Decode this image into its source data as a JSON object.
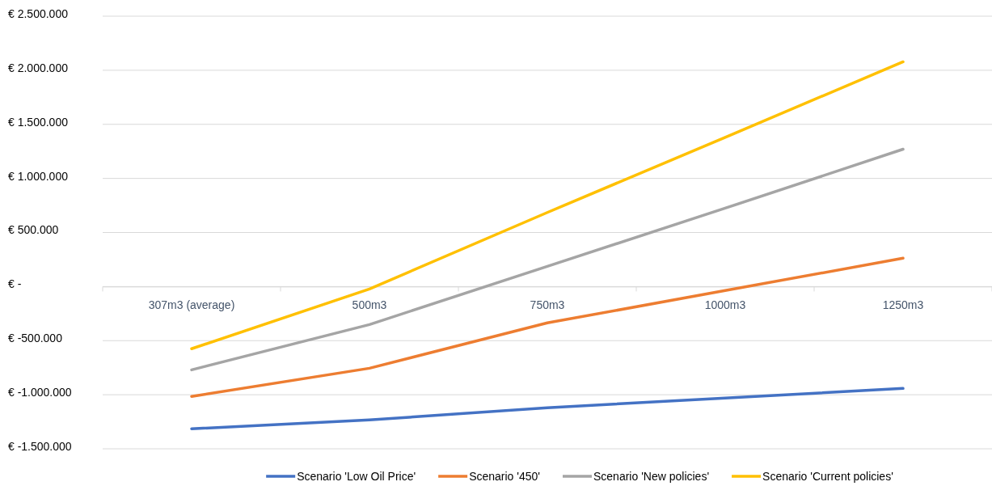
{
  "chart_data": {
    "type": "line",
    "categories": [
      "307m3 (average)",
      "500m3",
      "750m3",
      "1000m3",
      "1250m3"
    ],
    "series": [
      {
        "name": "Scenario 'Low Oil Price'",
        "color": "#4472c4",
        "values": [
          -1315000,
          -1233000,
          -1120000,
          -1030000,
          -942000
        ]
      },
      {
        "name": "Scenario '450'",
        "color": "#ed7d31",
        "values": [
          -1016000,
          -755000,
          -336000,
          -37000,
          262000
        ]
      },
      {
        "name": "Scenario 'New policies'",
        "color": "#a5a5a5",
        "values": [
          -770000,
          -351000,
          187000,
          725000,
          1270000
        ]
      },
      {
        "name": "Scenario 'Current policies'",
        "color": "#ffc000",
        "values": [
          -575000,
          -22000,
          685000,
          1380000,
          2078000
        ]
      }
    ],
    "ylim": [
      -1500000,
      2500000
    ],
    "yticks": [
      {
        "value": -1500000,
        "label": "€ -1.500.000"
      },
      {
        "value": -1000000,
        "label": "€ -1.000.000"
      },
      {
        "value": -500000,
        "label": "€ -500.000"
      },
      {
        "value": 0,
        "label": "€ -"
      },
      {
        "value": 500000,
        "label": "€ 500.000"
      },
      {
        "value": 1000000,
        "label": "€ 1.000.000"
      },
      {
        "value": 1500000,
        "label": "€ 1.500.000"
      },
      {
        "value": 2000000,
        "label": "€ 2.000.000"
      },
      {
        "value": 2500000,
        "label": "€ 2.500.000"
      }
    ],
    "grid": "y",
    "legend": "bottom",
    "marker": "none",
    "line_style": "solid"
  }
}
